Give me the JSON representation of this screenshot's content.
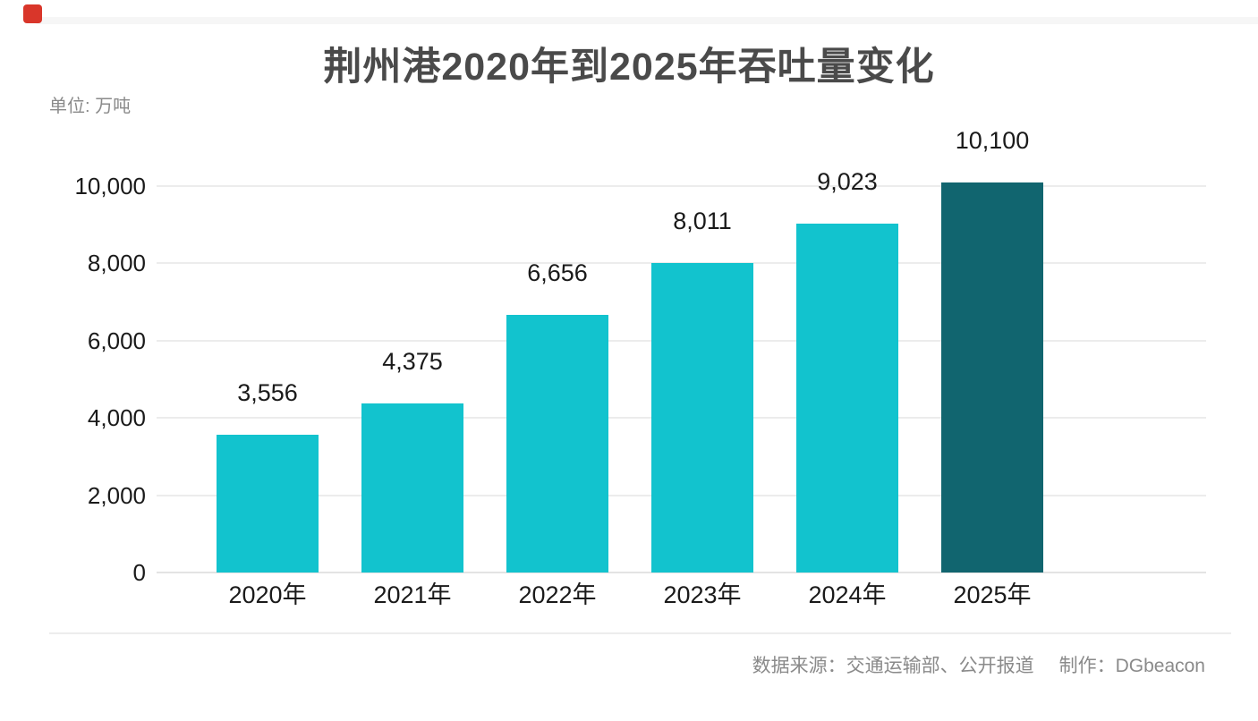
{
  "page": {
    "unit_label": "单位: 万吨",
    "footer": {
      "source_label": "数据来源：交通运输部、公开报道",
      "credit_label": "制作：DGbeacon"
    },
    "logo_color": "#d9362a",
    "background_color": "#ffffff"
  },
  "chart_data": {
    "type": "bar",
    "title": "荆州港2020年到2025年吞吐量变化",
    "unit": "万吨",
    "categories": [
      "2020年",
      "2021年",
      "2022年",
      "2023年",
      "2024年",
      "2025年"
    ],
    "values": [
      3556,
      4375,
      6656,
      8011,
      9023,
      10100
    ],
    "value_labels": [
      "3,556",
      "4,375",
      "6,656",
      "8,011",
      "9,023",
      "10,100"
    ],
    "y_ticks": [
      0,
      2000,
      4000,
      6000,
      8000,
      10000
    ],
    "y_tick_labels": [
      "0",
      "2,000",
      "4,000",
      "6,000",
      "8,000",
      "10,000"
    ],
    "ylim": [
      0,
      10000
    ],
    "xlabel": "",
    "ylabel": "单位: 万吨",
    "grid": true,
    "legend": "none",
    "bar_color": "#12c3ce",
    "highlight_bar_color": "#11656f",
    "highlight_index": 5,
    "gridline_color": "#ececec",
    "baseline_color": "#e3e3e3",
    "label_color": "#1a1a1a"
  }
}
